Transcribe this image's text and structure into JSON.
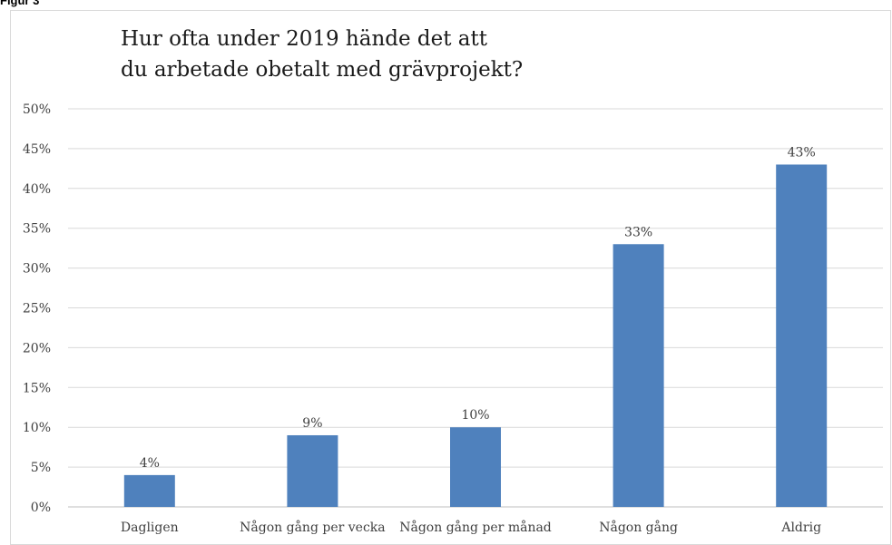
{
  "figure_label": "Figur 3",
  "chart_data": {
    "type": "bar",
    "title_lines": [
      "Hur ofta under 2019 hände det att",
      "du arbetade obetalt med grävprojekt?"
    ],
    "categories": [
      "Dagligen",
      "Någon gång per vecka",
      "Någon gång per månad",
      "Någon gång",
      "Aldrig"
    ],
    "values": [
      4,
      9,
      10,
      33,
      43
    ],
    "data_labels": [
      "4%",
      "9%",
      "10%",
      "33%",
      "43%"
    ],
    "y_ticks": [
      "0%",
      "5%",
      "10%",
      "15%",
      "20%",
      "25%",
      "30%",
      "35%",
      "40%",
      "45%",
      "50%"
    ],
    "ylim": [
      0,
      50
    ],
    "y_unit": "%",
    "grid": true,
    "bar_color": "#4f81bd",
    "grid_color": "#d9d9d9"
  }
}
